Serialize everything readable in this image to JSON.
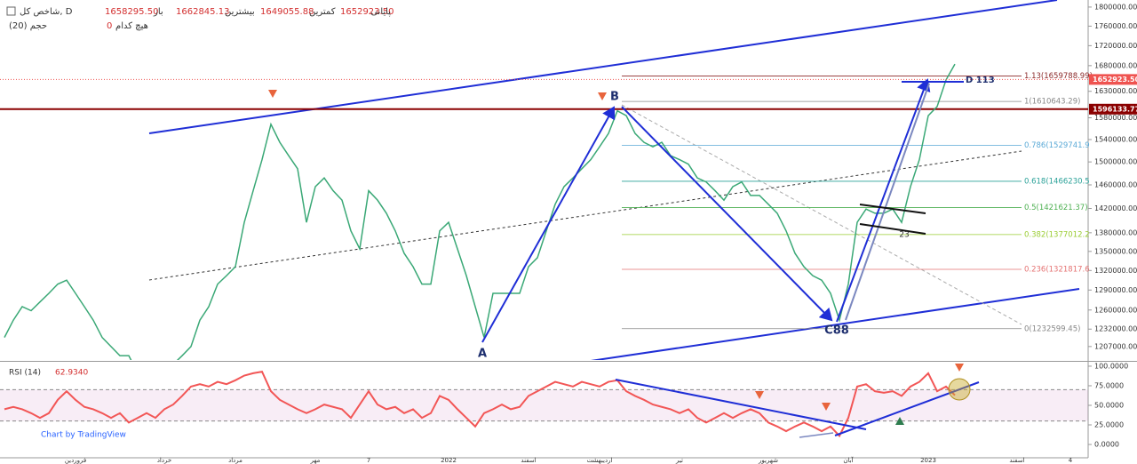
{
  "header": {
    "symbol": "شاخص کل, D",
    "fields": [
      {
        "label": "باز",
        "value": "1658295.50"
      },
      {
        "label": "بیشترین",
        "value": "1662845.13"
      },
      {
        "label": "کمترین",
        "value": "1649055.88"
      },
      {
        "label": "پایانی",
        "value": "1652923.50"
      }
    ],
    "none_label": "هیچ کدام",
    "none_value": "0",
    "volume": "حجم (20)",
    "credit": "Chart by TradingView"
  },
  "chart_data": [
    {
      "type": "line",
      "log": true,
      "color": "#3aa876",
      "categories": [
        null,
        null,
        null,
        null,
        null,
        null,
        null,
        null,
        "فروردین",
        null,
        null,
        null,
        null,
        null,
        null,
        null,
        null,
        null,
        "خرداد",
        null,
        null,
        null,
        null,
        null,
        null,
        null,
        "مرداد",
        null,
        null,
        null,
        null,
        null,
        null,
        null,
        null,
        "مهر",
        null,
        null,
        null,
        null,
        null,
        "7",
        null,
        null,
        null,
        null,
        null,
        null,
        null,
        null,
        "2022",
        null,
        null,
        null,
        null,
        null,
        null,
        null,
        null,
        "اسفند",
        null,
        null,
        null,
        null,
        null,
        null,
        null,
        "اردیبهشت",
        null,
        null,
        null,
        null,
        null,
        null,
        null,
        null,
        "تیر",
        null,
        null,
        null,
        null,
        null,
        null,
        null,
        null,
        null,
        "شهریور",
        null,
        null,
        null,
        null,
        null,
        null,
        null,
        null,
        "آبان",
        null,
        null,
        null,
        null,
        null,
        null,
        null,
        null,
        "2023",
        null,
        null,
        null,
        null,
        null,
        null,
        null,
        null,
        null,
        "اسفند",
        null,
        null,
        null,
        null,
        null,
        "4"
      ],
      "values": [
        1220000,
        1245000,
        1265000,
        1259000,
        1272000,
        1285000,
        1299000,
        1305000,
        1285000,
        1265000,
        1245000,
        1220000,
        1207000,
        1194000,
        1194000,
        1170000,
        1170000,
        1170000,
        1170000,
        1182000,
        1194000,
        1207000,
        1245000,
        1265000,
        1299000,
        1312000,
        1326000,
        1397000,
        1450000,
        1504000,
        1568000,
        1535000,
        1511000,
        1488000,
        1397000,
        1457000,
        1472000,
        1450000,
        1434000,
        1383000,
        1354000,
        1450000,
        1434000,
        1412000,
        1383000,
        1347000,
        1326000,
        1299000,
        1299000,
        1383000,
        1397000,
        1354000,
        1312000,
        1265000,
        1220000,
        1285000,
        1285000,
        1285000,
        1285000,
        1326000,
        1340000,
        1383000,
        1427000,
        1457000,
        1472000,
        1488000,
        1504000,
        1527000,
        1551000,
        1593000,
        1584000,
        1551000,
        1535000,
        1527000,
        1535000,
        1511000,
        1504000,
        1496000,
        1472000,
        1465000,
        1450000,
        1434000,
        1457000,
        1465000,
        1442000,
        1442000,
        1427000,
        1412000,
        1383000,
        1347000,
        1326000,
        1312000,
        1305000,
        1285000,
        1245000,
        1299000,
        1397000,
        1419000,
        1412000,
        1412000,
        1419000,
        1397000,
        1457000,
        1504000,
        1584000,
        1601000,
        1652000,
        1683000,
        null,
        null,
        null,
        null,
        null,
        null,
        null,
        null,
        null,
        null,
        null,
        null,
        null
      ],
      "ylim": [
        1188000,
        1815000
      ],
      "yticks": [
        {
          "value": 1800000,
          "label": "1800000.00"
        },
        {
          "value": 1760000,
          "label": "1760000.00"
        },
        {
          "value": 1720000,
          "label": "1720000.00"
        },
        {
          "value": 1680000,
          "label": "1680000.00"
        },
        {
          "value": 1630000,
          "label": "1630000.00"
        },
        {
          "value": 1580000,
          "label": "1580000.00"
        },
        {
          "value": 1540000,
          "label": "1540000.00"
        },
        {
          "value": 1500000,
          "label": "1500000.00"
        },
        {
          "value": 1460000,
          "label": "1460000.00"
        },
        {
          "value": 1420000,
          "label": "1420000.00"
        },
        {
          "value": 1380000,
          "label": "1380000.00"
        },
        {
          "value": 1350000,
          "label": "1350000.00"
        },
        {
          "value": 1320000,
          "label": "1320000.00"
        },
        {
          "value": 1290000,
          "label": "1290000.00"
        },
        {
          "value": 1260000,
          "label": "1260000.00"
        },
        {
          "value": 1232000,
          "label": "1232000.00"
        },
        {
          "value": 1207000,
          "label": "1207000.00"
        }
      ],
      "fib": [
        {
          "value": 1659788.99,
          "label": "1.13(1659788.99)",
          "color": "#8b2a2a"
        },
        {
          "value": 1610643.29,
          "label": "1(1610643.29)",
          "color": "#888888"
        },
        {
          "value": 1529741.9,
          "label": "0.786(1529741.9",
          "color": "#5aa9d6"
        },
        {
          "value": 1466230.5,
          "label": "0.618(1466230.5",
          "color": "#2aa198"
        },
        {
          "value": 1421621.37,
          "label": "0.5(1421621.37)",
          "color": "#4caf50"
        },
        {
          "value": 1377012.2,
          "label": "0.382(1377012.2",
          "color": "#9acd32"
        },
        {
          "value": 1321817.6,
          "label": "0.236(1321817.6",
          "color": "#e57373"
        },
        {
          "value": 1232599.45,
          "label": "0(1232599.45)",
          "color": "#888888"
        }
      ],
      "hline": {
        "value": 1596133.77,
        "label": "1596133.77",
        "color": "#8b0000"
      },
      "last_price": {
        "value": 1652923.5,
        "label": "1652923.50",
        "color": "#ef5350"
      },
      "annotations": [
        "A",
        "B",
        "C88",
        "D 113",
        "23"
      ]
    },
    {
      "type": "line",
      "title": "RSI (14)",
      "color": "#f25656",
      "values": [
        45,
        48,
        45,
        40,
        34,
        40,
        57,
        68,
        57,
        48,
        45,
        40,
        34,
        40,
        28,
        34,
        40,
        34,
        45,
        51,
        62,
        74,
        77,
        74,
        80,
        77,
        82,
        88,
        91,
        93,
        68,
        57,
        51,
        45,
        40,
        45,
        51,
        48,
        45,
        34,
        51,
        68,
        51,
        45,
        48,
        40,
        45,
        34,
        40,
        62,
        57,
        45,
        34,
        23,
        40,
        45,
        51,
        45,
        48,
        62,
        68,
        74,
        80,
        77,
        74,
        80,
        77,
        74,
        80,
        82,
        68,
        62,
        57,
        51,
        48,
        45,
        40,
        45,
        34,
        28,
        34,
        40,
        34,
        40,
        45,
        40,
        28,
        23,
        17,
        23,
        28,
        23,
        17,
        23,
        11,
        34,
        74,
        77,
        68,
        66,
        68,
        62,
        74,
        80,
        91,
        68,
        74,
        62.934,
        null,
        null,
        null,
        null,
        null,
        null,
        null,
        null,
        null,
        null,
        null,
        null,
        null
      ],
      "value_labels": {
        "last": "62.9340"
      },
      "band": [
        30,
        70
      ],
      "ylim": [
        -17,
        104.5
      ],
      "yticks": [
        {
          "value": 100,
          "label": "100.0000"
        },
        {
          "value": 75,
          "label": "75.0000"
        },
        {
          "value": 50,
          "label": "50.0000"
        },
        {
          "value": 25,
          "label": "25.0000"
        },
        {
          "value": 0,
          "label": "0.0000"
        }
      ]
    }
  ]
}
